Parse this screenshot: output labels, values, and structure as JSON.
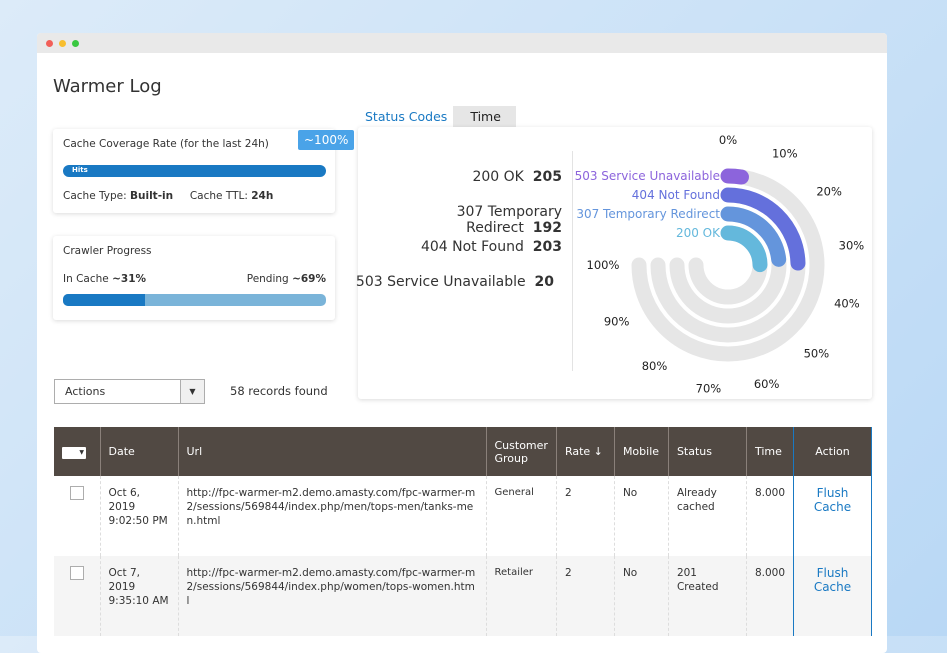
{
  "window": {
    "title": "Warmer Log"
  },
  "coverage": {
    "title": "Cache Coverage Rate (for the last 24h)",
    "badge": "~100%",
    "bar_label": "Hits",
    "value_percent": 100,
    "cache_type_label": "Cache Type:",
    "cache_type": "Built-in",
    "ttl_label": "Cache TTL:",
    "ttl": "24h"
  },
  "crawler": {
    "title": "Crawler Progress",
    "in_cache_label": "In Cache",
    "in_cache": "~31%",
    "pending_label": "Pending",
    "pending": "~69%",
    "in_cache_percent": 31
  },
  "actions": {
    "label": "Actions",
    "records": "58 records found"
  },
  "tabs": [
    {
      "label": "Status Codes",
      "active": true
    },
    {
      "label": "Time",
      "active": false
    }
  ],
  "chart_data": {
    "type": "radial-bar",
    "series": [
      {
        "name": "200 OK",
        "value": 205,
        "color": "#64b8dc"
      },
      {
        "name": "307 Temporary Redirect",
        "value": 192,
        "color": "#6495dc"
      },
      {
        "name": "404 Not Found",
        "value": 203,
        "color": "#6470dc"
      },
      {
        "name": "503 Service Unavailable",
        "value": 20,
        "color": "#8c64dc"
      }
    ],
    "tick_labels": [
      "0%",
      "10%",
      "20%",
      "30%",
      "40%",
      "50%",
      "60%",
      "70%",
      "80%",
      "90%",
      "100%"
    ]
  },
  "table": {
    "headers": [
      "Date",
      "Url",
      "Customer Group",
      "Rate ↓",
      "Mobile",
      "Status",
      "Time",
      "Action"
    ],
    "rows": [
      {
        "date": "Oct 6, 2019 9:02:50 PM",
        "url": "http://fpc-warmer-m2.demo.amasty.com/fpc-warmer-m2/sessions/569844/index.php/men/tops-men/tanks-men.html",
        "group": "General",
        "rate": "2",
        "mobile": "No",
        "status": "Already cached",
        "time": "8.000",
        "action": "Flush Cache"
      },
      {
        "date": "Oct 7, 2019 9:35:10 AM",
        "url": "http://fpc-warmer-m2.demo.amasty.com/fpc-warmer-m2/sessions/569844/index.php/women/tops-women.html",
        "group": "Retailer",
        "rate": "2",
        "mobile": "No",
        "status": "201 Created",
        "time": "8.000",
        "action": "Flush Cache"
      }
    ]
  }
}
